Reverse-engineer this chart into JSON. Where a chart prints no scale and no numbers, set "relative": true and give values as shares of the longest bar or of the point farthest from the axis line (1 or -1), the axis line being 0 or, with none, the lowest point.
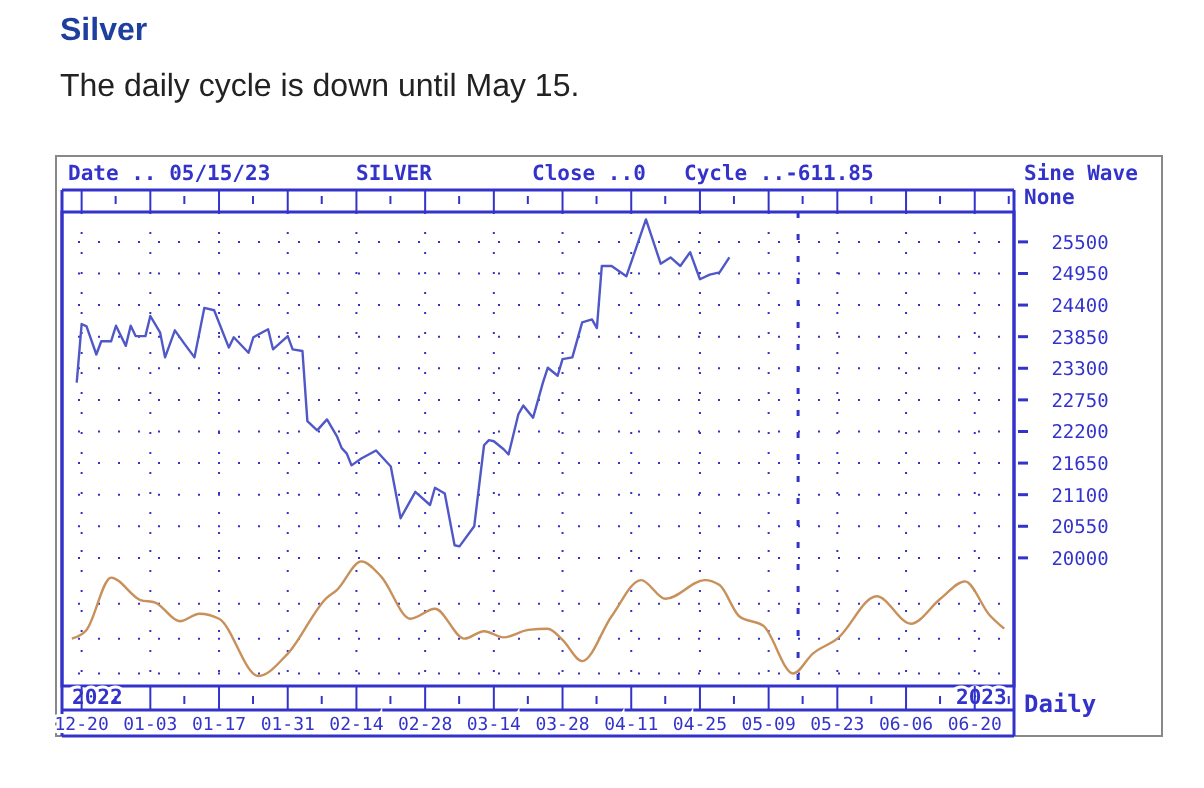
{
  "chart_data": [
    {
      "type": "line",
      "title": "Silver",
      "subtitle": "The daily cycle is down until May 15.",
      "annotations": [
        "Date .. 05/15/23",
        "SILVER",
        "Close ..0",
        "Cycle ..-611.85",
        "Sine Wave",
        "None",
        "2022",
        "2023",
        "Daily"
      ],
      "xlim": [
        "2022-12-16",
        "2023-06-28"
      ],
      "xticks": [
        {
          "value": "2022-12-20",
          "label": null
        },
        {
          "value": "2023-01-03",
          "label": null
        },
        {
          "value": "2023-01-17",
          "label": null
        },
        {
          "value": "2023-01-31",
          "label": null
        },
        {
          "value": "2023-02-14",
          "label": null
        },
        {
          "value": "2023-02-28",
          "label": null
        },
        {
          "value": "2023-03-14",
          "label": null
        },
        {
          "value": "2023-03-28",
          "label": null
        },
        {
          "value": "2023-04-11",
          "label": null
        },
        {
          "value": "2023-04-25",
          "label": null
        },
        {
          "value": "2023-05-09",
          "label": null
        },
        {
          "value": "2023-05-23",
          "label": null
        },
        {
          "value": "2023-06-06",
          "label": null
        },
        {
          "value": "2023-06-20",
          "label": null
        }
      ],
      "ylim": [
        17770,
        26020
      ],
      "yticks": [
        20000,
        20550,
        21100,
        21650,
        22200,
        22750,
        23300,
        23850,
        24400,
        24950,
        25500
      ],
      "grid": true,
      "tick_labels": "y",
      "ref_lines": [
        {
          "axis": "x",
          "value": "2023-05-15",
          "color": "#3333cc",
          "line_style": "dashed"
        }
      ],
      "series": [
        {
          "color": "#5058c8",
          "x": [
            "2022-12-19",
            "2022-12-20",
            "2022-12-21",
            "2022-12-23",
            "2022-12-24",
            "2022-12-26",
            "2022-12-27",
            "2022-12-29",
            "2022-12-30",
            "2022-12-31",
            "2023-01-02",
            "2023-01-03",
            "2023-01-05",
            "2023-01-06",
            "2023-01-08",
            "2023-01-10",
            "2023-01-12",
            "2023-01-14",
            "2023-01-16",
            "2023-01-19",
            "2023-01-20",
            "2023-01-23",
            "2023-01-24",
            "2023-01-27",
            "2023-01-28",
            "2023-01-31",
            "2023-02-01",
            "2023-02-03",
            "2023-02-04",
            "2023-02-06",
            "2023-02-08",
            "2023-02-10",
            "2023-02-11",
            "2023-02-12",
            "2023-02-13",
            "2023-02-15",
            "2023-02-18",
            "2023-02-21",
            "2023-02-23",
            "2023-02-26",
            "2023-03-01",
            "2023-03-02",
            "2023-03-04",
            "2023-03-06",
            "2023-03-07",
            "2023-03-10",
            "2023-03-12",
            "2023-03-13",
            "2023-03-14",
            "2023-03-16",
            "2023-03-17",
            "2023-03-19",
            "2023-03-20",
            "2023-03-22",
            "2023-03-24",
            "2023-03-25",
            "2023-03-27",
            "2023-03-28",
            "2023-03-30",
            "2023-04-01",
            "2023-04-03",
            "2023-04-04",
            "2023-04-05",
            "2023-04-07",
            "2023-04-10",
            "2023-04-14",
            "2023-04-17",
            "2023-04-19",
            "2023-04-21",
            "2023-04-23",
            "2023-04-25",
            "2023-04-27",
            "2023-04-29",
            "2023-05-01"
          ],
          "values": [
            23050,
            24070,
            24030,
            23540,
            23770,
            23770,
            24040,
            23690,
            24040,
            23860,
            23860,
            24210,
            23920,
            23490,
            23960,
            23720,
            23490,
            24350,
            24310,
            23660,
            23840,
            23570,
            23840,
            23980,
            23630,
            23860,
            23630,
            23600,
            22380,
            22220,
            22410,
            22120,
            21910,
            21820,
            21610,
            21730,
            21870,
            21590,
            20690,
            21150,
            20920,
            21220,
            21120,
            20220,
            20200,
            20550,
            21960,
            22050,
            22030,
            21890,
            21800,
            22500,
            22650,
            22440,
            23050,
            23310,
            23170,
            23460,
            23490,
            24100,
            24150,
            24000,
            25080,
            25080,
            24900,
            25890,
            25120,
            25230,
            25080,
            25320,
            24850,
            24930,
            24970,
            25230
          ]
        }
      ]
    },
    {
      "type": "line",
      "relative": true,
      "tick_labels": "x",
      "grid": true,
      "xlim": [
        "2022-12-16",
        "2023-06-28"
      ],
      "xticks": [
        {
          "value": "2022-12-20",
          "label": "12-20"
        },
        {
          "value": "2023-01-03",
          "label": "01-03"
        },
        {
          "value": "2023-01-17",
          "label": "01-17"
        },
        {
          "value": "2023-01-31",
          "label": "01-31"
        },
        {
          "value": "2023-02-14",
          "label": "02-14"
        },
        {
          "value": "2023-02-28",
          "label": "02-28"
        },
        {
          "value": "2023-03-14",
          "label": "03-14"
        },
        {
          "value": "2023-03-28",
          "label": "03-28"
        },
        {
          "value": "2023-04-11",
          "label": "04-11"
        },
        {
          "value": "2023-04-25",
          "label": "04-25"
        },
        {
          "value": "2023-05-09",
          "label": "05-09"
        },
        {
          "value": "2023-05-23",
          "label": "05-23"
        },
        {
          "value": "2023-06-06",
          "label": "06-06"
        },
        {
          "value": "2023-06-20",
          "label": "06-20"
        }
      ],
      "series": [
        {
          "color": "#c8905a",
          "x": [
            "2022-12-18",
            "2022-12-21",
            "2022-12-26",
            "2023-01-01",
            "2023-01-04",
            "2023-01-09",
            "2023-01-13",
            "2023-01-17",
            "2023-01-25",
            "2023-01-31",
            "2023-02-08",
            "2023-02-10",
            "2023-02-15",
            "2023-02-19",
            "2023-02-25",
            "2023-03-02",
            "2023-03-08",
            "2023-03-12",
            "2023-03-16",
            "2023-03-21",
            "2023-03-25",
            "2023-03-28",
            "2023-04-01",
            "2023-04-07",
            "2023-04-13",
            "2023-04-18",
            "2023-04-26",
            "2023-04-29",
            "2023-05-03",
            "2023-05-08",
            "2023-05-14",
            "2023-05-18",
            "2023-05-23",
            "2023-05-31",
            "2023-06-07",
            "2023-06-13",
            "2023-06-18",
            "2023-06-23",
            "2023-06-26"
          ],
          "values": [
            0.38,
            0.45,
            0.87,
            0.69,
            0.67,
            0.52,
            0.58,
            0.54,
            0.08,
            0.26,
            0.71,
            0.77,
            1,
            0.88,
            0.54,
            0.62,
            0.38,
            0.44,
            0.39,
            0.45,
            0.46,
            0.37,
            0.2,
            0.56,
            0.85,
            0.7,
            0.85,
            0.81,
            0.56,
            0.48,
            0.1,
            0.26,
            0.38,
            0.72,
            0.5,
            0.7,
            0.84,
            0.57,
            0.46
          ]
        }
      ]
    }
  ]
}
